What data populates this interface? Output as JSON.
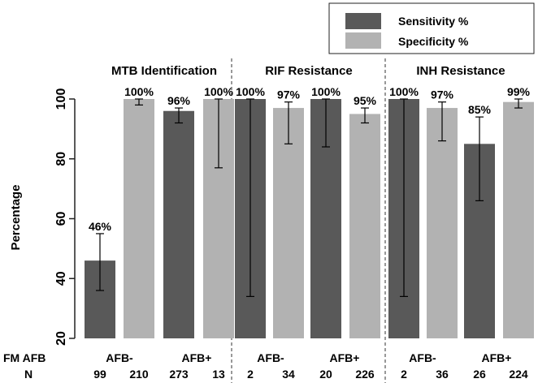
{
  "chart_data": {
    "type": "bar",
    "ylabel": "Percentage",
    "ylim": [
      20,
      100
    ],
    "yticks": [
      20,
      40,
      60,
      80,
      100
    ],
    "grid": false,
    "legend_placement": "top-right",
    "row_labels": {
      "fm_afb": "FM AFB",
      "n": "N"
    },
    "series": [
      {
        "name": "Sensitivity %",
        "color": "#595959"
      },
      {
        "name": "Specificity %",
        "color": "#b2b2b2"
      }
    ],
    "panels": [
      {
        "title": "MTB Identification",
        "groups": [
          {
            "label": "AFB-",
            "bars": [
              {
                "series": 0,
                "value": 46,
                "label": "46%",
                "n": "99",
                "err_low": 36,
                "err_high": 55
              },
              {
                "series": 1,
                "value": 100,
                "label": "100%",
                "n": "210",
                "err_low": 98,
                "err_high": 100
              }
            ]
          },
          {
            "label": "AFB+",
            "bars": [
              {
                "series": 0,
                "value": 96,
                "label": "96%",
                "n": "273",
                "err_low": 92,
                "err_high": 97
              },
              {
                "series": 1,
                "value": 100,
                "label": "100%",
                "n": "13",
                "err_low": 77,
                "err_high": 100
              }
            ]
          }
        ]
      },
      {
        "title": "RIF Resistance",
        "groups": [
          {
            "label": "AFB-",
            "bars": [
              {
                "series": 0,
                "value": 100,
                "label": "100%",
                "n": "2",
                "err_low": 34,
                "err_high": 100
              },
              {
                "series": 1,
                "value": 97,
                "label": "97%",
                "n": "34",
                "err_low": 85,
                "err_high": 99
              }
            ]
          },
          {
            "label": "AFB+",
            "bars": [
              {
                "series": 0,
                "value": 100,
                "label": "100%",
                "n": "20",
                "err_low": 84,
                "err_high": 100
              },
              {
                "series": 1,
                "value": 95,
                "label": "95%",
                "n": "226",
                "err_low": 92,
                "err_high": 97
              }
            ]
          }
        ]
      },
      {
        "title": "INH Resistance",
        "groups": [
          {
            "label": "AFB-",
            "bars": [
              {
                "series": 0,
                "value": 100,
                "label": "100%",
                "n": "2",
                "err_low": 34,
                "err_high": 100
              },
              {
                "series": 1,
                "value": 97,
                "label": "97%",
                "n": "36",
                "err_low": 86,
                "err_high": 99
              }
            ]
          },
          {
            "label": "AFB+",
            "bars": [
              {
                "series": 0,
                "value": 85,
                "label": "85%",
                "n": "26",
                "err_low": 66,
                "err_high": 94
              },
              {
                "series": 1,
                "value": 99,
                "label": "99%",
                "n": "224",
                "err_low": 97,
                "err_high": 100
              }
            ]
          }
        ]
      }
    ]
  }
}
